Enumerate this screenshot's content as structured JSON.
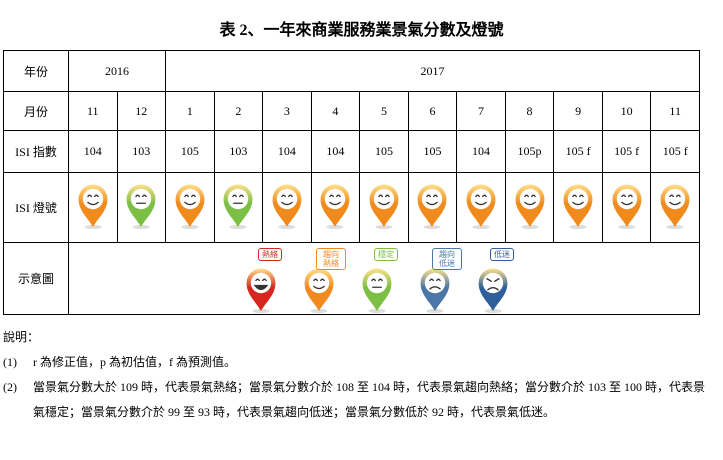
{
  "title": "表 2、一年來商業服務業景氣分數及燈號",
  "table": {
    "row_headers": [
      "年份",
      "月份",
      "ISI 指數",
      "ISI 燈號",
      "示意圖"
    ],
    "years": [
      "2016",
      "2017"
    ],
    "months": [
      "11",
      "12",
      "1",
      "2",
      "3",
      "4",
      "5",
      "6",
      "7",
      "8",
      "9",
      "10",
      "11"
    ],
    "index": [
      "104",
      "103",
      "105",
      "103",
      "104",
      "104",
      "105",
      "105",
      "104",
      "105p",
      "105 f",
      "105 f",
      "105 f"
    ],
    "light_colors": [
      "#f08a1c",
      "#7bbf44",
      "#f08a1c",
      "#7bbf44",
      "#f08a1c",
      "#f08a1c",
      "#f08a1c",
      "#f08a1c",
      "#f08a1c",
      "#f08a1c",
      "#f08a1c",
      "#f08a1c",
      "#f08a1c"
    ],
    "legend": [
      {
        "label": "熱絡",
        "color": "#d7261e"
      },
      {
        "label": "趨向熱絡",
        "color": "#f08a1c"
      },
      {
        "label": "穩定",
        "color": "#7bbf44"
      },
      {
        "label": "趨向低迷",
        "color": "#4a77a8"
      },
      {
        "label": "低迷",
        "color": "#2f5f9a"
      }
    ]
  },
  "notes": {
    "heading": "說明：",
    "items": [
      {
        "marker": "(1)",
        "text": "r 為修正值，p 為初估值，f 為預測值。"
      },
      {
        "marker": "(2)",
        "text": "當景氣分數大於 109 時，代表景氣熱絡；當景氣分數介於 108 至 104 時，代表景氣趨向熱絡；當分數介於 103 至 100 時，代表景氣穩定；當景氣分數介於 99 至 93 時，代表景氣趨向低迷；當景氣分數低於 92 時，代表景氣低迷。"
      }
    ]
  }
}
